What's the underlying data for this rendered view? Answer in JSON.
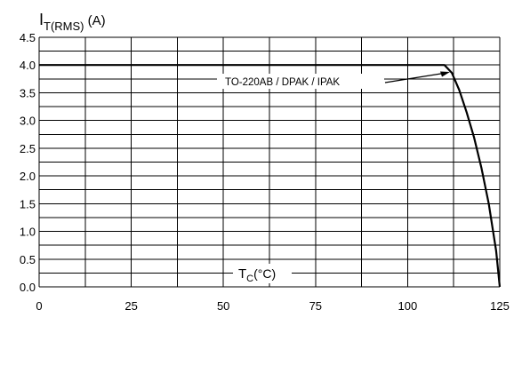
{
  "chart_data": {
    "type": "line",
    "ylabel_main": "I",
    "ylabel_sub": "T(RMS)",
    "ylabel_unit": " (A)",
    "xlabel_main": "T",
    "xlabel_sub": "C",
    "xlabel_unit": "(°C)",
    "x_ticks": [
      "0",
      "25",
      "50",
      "75",
      "100",
      "125"
    ],
    "y_ticks": [
      "0.0",
      "0.5",
      "1.0",
      "1.5",
      "2.0",
      "2.5",
      "3.0",
      "3.5",
      "4.0",
      "4.5"
    ],
    "xlim": [
      0,
      125
    ],
    "ylim": [
      0,
      4.5
    ],
    "grid": true,
    "series": [
      {
        "name": "TO-220AB / DPAK / IPAK",
        "x": [
          0,
          110,
          112,
          114,
          116,
          118,
          120,
          122,
          124,
          125
        ],
        "y": [
          4.0,
          4.0,
          3.86,
          3.55,
          3.15,
          2.7,
          2.15,
          1.5,
          0.65,
          0.0
        ]
      }
    ],
    "annotation": "TO-220AB / DPAK / IPAK"
  }
}
